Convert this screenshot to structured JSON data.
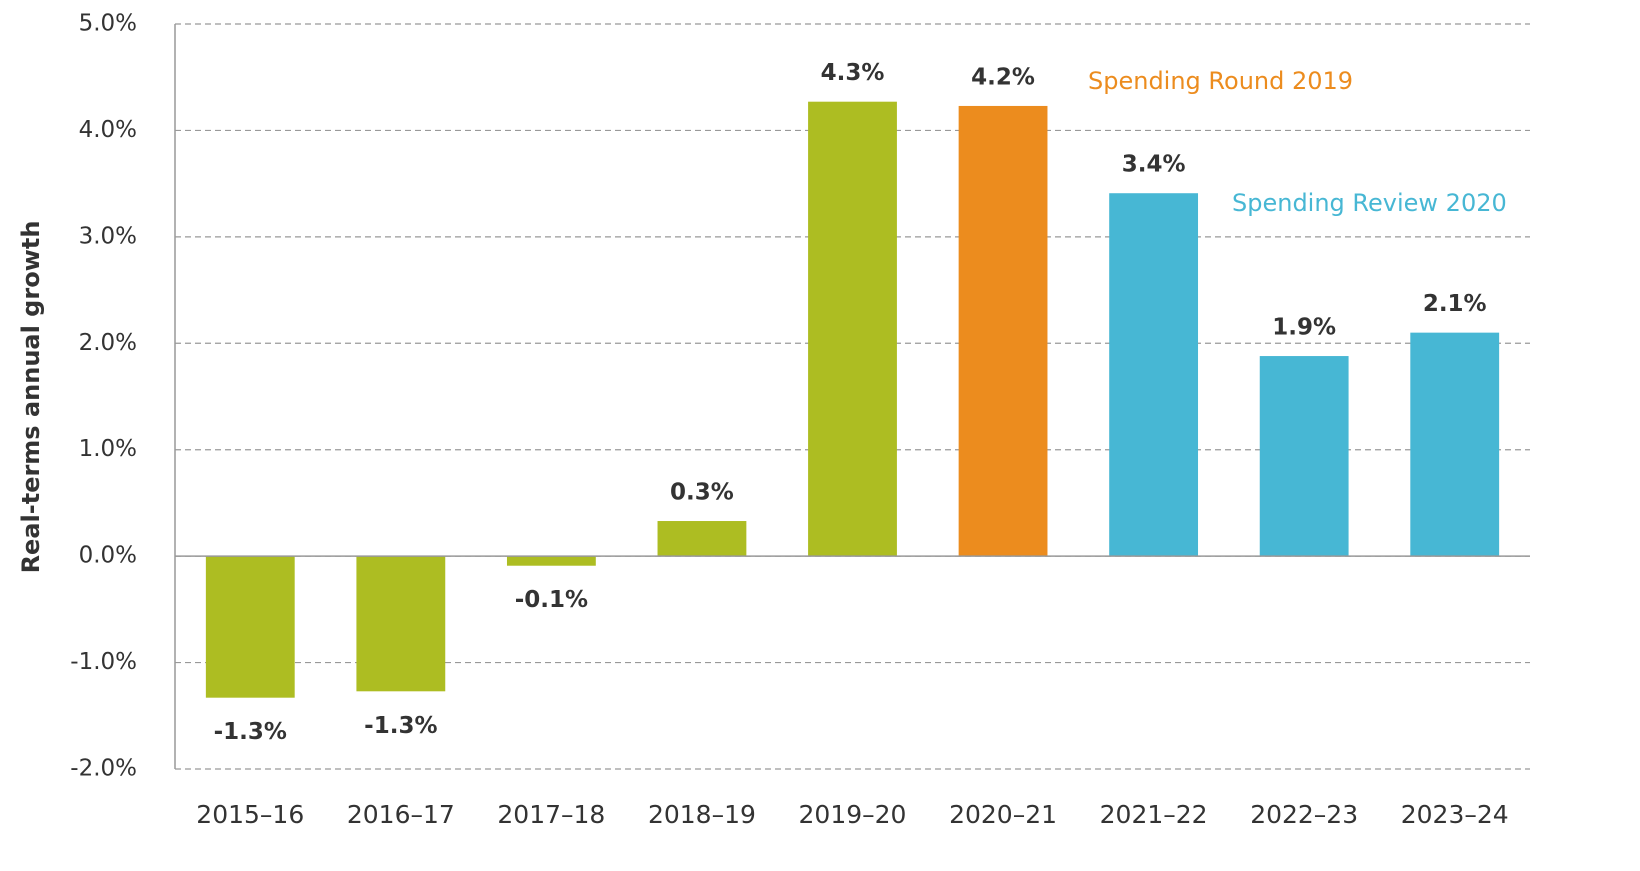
{
  "chart_data": {
    "type": "bar",
    "y_label": "Real-terms annual growth",
    "categories": [
      "2015–16",
      "2016–17",
      "2017–18",
      "2018–19",
      "2019–20",
      "2020–21",
      "2021–22",
      "2022–23",
      "2023–24"
    ],
    "values": [
      -1.33,
      -1.27,
      -0.09,
      0.33,
      4.27,
      4.23,
      3.41,
      1.88,
      2.1
    ],
    "value_labels": [
      "-1.3%",
      "-1.3%",
      "-0.1%",
      "0.3%",
      "4.3%",
      "4.2%",
      "3.4%",
      "1.9%",
      "2.1%"
    ],
    "colors": [
      "#adbd22",
      "#adbd22",
      "#adbd22",
      "#adbd22",
      "#adbd22",
      "#ec8c1e",
      "#47b7d4",
      "#47b7d4",
      "#47b7d4"
    ],
    "ylim": [
      -2,
      5
    ],
    "yticks": [
      {
        "value": -2,
        "label": "-2.0%"
      },
      {
        "value": -1,
        "label": "-1.0%"
      },
      {
        "value": 0,
        "label": "0.0%"
      },
      {
        "value": 1,
        "label": "1.0%"
      },
      {
        "value": 2,
        "label": "2.0%"
      },
      {
        "value": 3,
        "label": "3.0%"
      },
      {
        "value": 4,
        "label": "4.0%"
      },
      {
        "value": 5,
        "label": "5.0%"
      }
    ],
    "grid": true,
    "annotations": [
      {
        "text": "Spending Round 2019",
        "color": "#ec8c1e"
      },
      {
        "text": "Spending Review 2020",
        "color": "#47b7d4"
      }
    ]
  }
}
